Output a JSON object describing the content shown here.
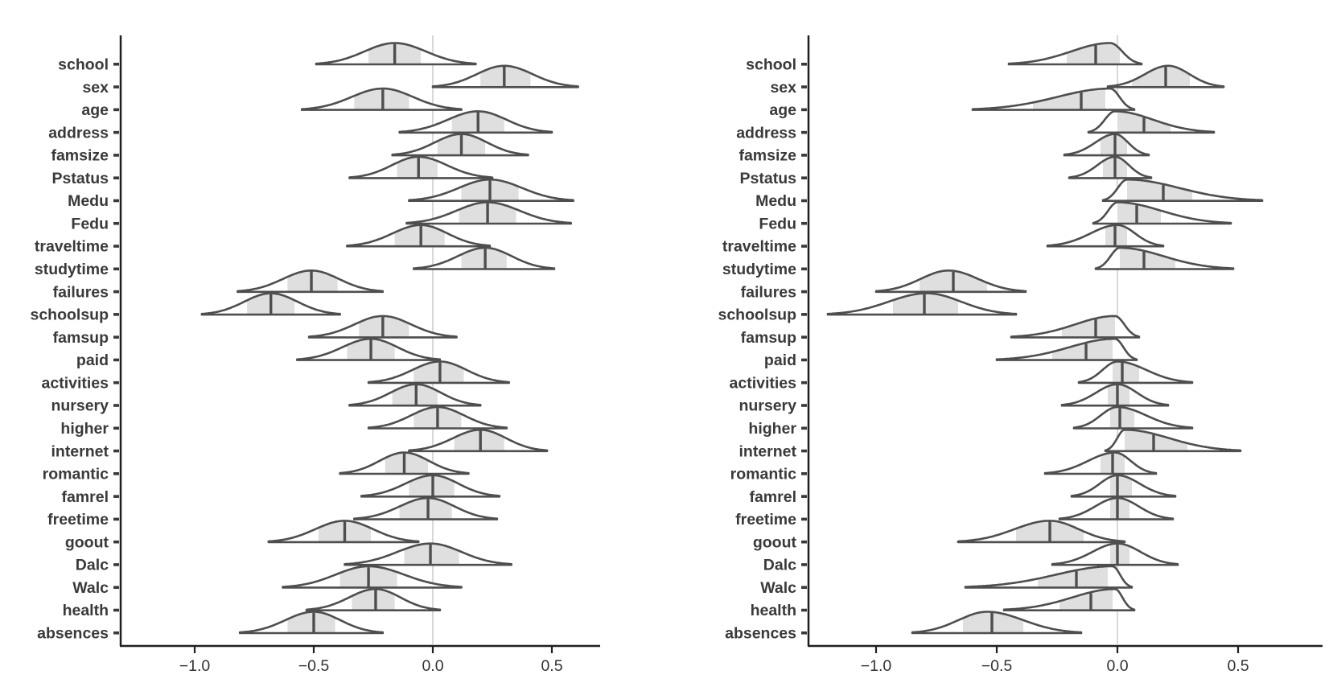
{
  "figure": {
    "background": "#ffffff",
    "curve_stroke": "#4e4e4e",
    "curve_fill": "#ffffff",
    "quartile_fill": "#dcdcdc",
    "median_color": "#4e4e4e",
    "zero_line_color": "#d8d8d8",
    "axis_color": "#1f1f1f",
    "y_label_color": "#3a3a3a",
    "x_label_color": "#333333"
  },
  "chart_data": [
    {
      "type": "ridgeline-density",
      "panel": "left",
      "title": "",
      "xlabel": "",
      "ylabel": "",
      "x_axis": {
        "tick_values": [
          -1.0,
          -0.5,
          0.0,
          0.5
        ],
        "tick_labels": [
          "−1.0",
          "−0.5",
          "0.0",
          "0.5"
        ],
        "reference_line": 0.0,
        "xlim": [
          -1.31,
          0.7
        ]
      },
      "rows": [
        {
          "label": "school",
          "median": -0.16,
          "q1": -0.27,
          "q3": -0.05,
          "min": -0.49,
          "max": 0.18,
          "mode": -0.16
        },
        {
          "label": "sex",
          "median": 0.3,
          "q1": 0.2,
          "q3": 0.41,
          "min": 0.0,
          "max": 0.61,
          "mode": 0.3
        },
        {
          "label": "age",
          "median": -0.21,
          "q1": -0.33,
          "q3": -0.1,
          "min": -0.55,
          "max": 0.12,
          "mode": -0.21
        },
        {
          "label": "address",
          "median": 0.19,
          "q1": 0.08,
          "q3": 0.3,
          "min": -0.14,
          "max": 0.5,
          "mode": 0.19
        },
        {
          "label": "famsize",
          "median": 0.12,
          "q1": 0.02,
          "q3": 0.22,
          "min": -0.17,
          "max": 0.4,
          "mode": 0.12
        },
        {
          "label": "Pstatus",
          "median": -0.06,
          "q1": -0.15,
          "q3": 0.02,
          "min": -0.35,
          "max": 0.25,
          "mode": -0.06
        },
        {
          "label": "Medu",
          "median": 0.24,
          "q1": 0.12,
          "q3": 0.36,
          "min": -0.1,
          "max": 0.59,
          "mode": 0.24
        },
        {
          "label": "Fedu",
          "median": 0.23,
          "q1": 0.11,
          "q3": 0.35,
          "min": -0.11,
          "max": 0.58,
          "mode": 0.23
        },
        {
          "label": "traveltime",
          "median": -0.05,
          "q1": -0.16,
          "q3": 0.05,
          "min": -0.36,
          "max": 0.24,
          "mode": -0.05
        },
        {
          "label": "studytime",
          "median": 0.22,
          "q1": 0.12,
          "q3": 0.31,
          "min": -0.08,
          "max": 0.51,
          "mode": 0.22
        },
        {
          "label": "failures",
          "median": -0.51,
          "q1": -0.61,
          "q3": -0.4,
          "min": -0.82,
          "max": -0.21,
          "mode": -0.51
        },
        {
          "label": "schoolsup",
          "median": -0.68,
          "q1": -0.78,
          "q3": -0.58,
          "min": -0.97,
          "max": -0.39,
          "mode": -0.68
        },
        {
          "label": "famsup",
          "median": -0.21,
          "q1": -0.31,
          "q3": -0.1,
          "min": -0.52,
          "max": 0.1,
          "mode": -0.21
        },
        {
          "label": "paid",
          "median": -0.26,
          "q1": -0.36,
          "q3": -0.16,
          "min": -0.57,
          "max": 0.03,
          "mode": -0.26
        },
        {
          "label": "activities",
          "median": 0.03,
          "q1": -0.08,
          "q3": 0.13,
          "min": -0.27,
          "max": 0.32,
          "mode": 0.03
        },
        {
          "label": "nursery",
          "median": -0.07,
          "q1": -0.17,
          "q3": 0.02,
          "min": -0.35,
          "max": 0.2,
          "mode": -0.07
        },
        {
          "label": "higher",
          "median": 0.02,
          "q1": -0.08,
          "q3": 0.12,
          "min": -0.27,
          "max": 0.31,
          "mode": 0.02
        },
        {
          "label": "internet",
          "median": 0.2,
          "q1": 0.09,
          "q3": 0.3,
          "min": -0.1,
          "max": 0.48,
          "mode": 0.2
        },
        {
          "label": "romantic",
          "median": -0.12,
          "q1": -0.2,
          "q3": -0.02,
          "min": -0.39,
          "max": 0.15,
          "mode": -0.12
        },
        {
          "label": "famrel",
          "median": 0.0,
          "q1": -0.1,
          "q3": 0.09,
          "min": -0.3,
          "max": 0.28,
          "mode": 0.0
        },
        {
          "label": "freetime",
          "median": -0.02,
          "q1": -0.14,
          "q3": 0.08,
          "min": -0.33,
          "max": 0.27,
          "mode": -0.02
        },
        {
          "label": "goout",
          "median": -0.37,
          "q1": -0.48,
          "q3": -0.26,
          "min": -0.69,
          "max": -0.06,
          "mode": -0.37
        },
        {
          "label": "Dalc",
          "median": -0.01,
          "q1": -0.12,
          "q3": 0.11,
          "min": -0.37,
          "max": 0.33,
          "mode": -0.01
        },
        {
          "label": "Walc",
          "median": -0.27,
          "q1": -0.39,
          "q3": -0.15,
          "min": -0.63,
          "max": 0.12,
          "mode": -0.27
        },
        {
          "label": "health",
          "median": -0.24,
          "q1": -0.34,
          "q3": -0.16,
          "min": -0.53,
          "max": 0.03,
          "mode": -0.24
        },
        {
          "label": "absences",
          "median": -0.5,
          "q1": -0.61,
          "q3": -0.41,
          "min": -0.81,
          "max": -0.21,
          "mode": -0.5
        }
      ]
    },
    {
      "type": "ridgeline-density",
      "panel": "right",
      "title": "",
      "xlabel": "",
      "ylabel": "",
      "x_axis": {
        "tick_values": [
          -1.0,
          -0.5,
          0.0,
          0.5
        ],
        "tick_labels": [
          "−1.0",
          "−0.5",
          "0.0",
          "0.5"
        ],
        "reference_line": 0.0,
        "xlim": [
          -1.28,
          0.85
        ]
      },
      "rows": [
        {
          "label": "school",
          "median": -0.09,
          "q1": -0.21,
          "q3": 0.01,
          "min": -0.45,
          "max": 0.1,
          "mode": -0.03
        },
        {
          "label": "sex",
          "median": 0.2,
          "q1": 0.06,
          "q3": 0.3,
          "min": -0.04,
          "max": 0.44,
          "mode": 0.21
        },
        {
          "label": "age",
          "median": -0.15,
          "q1": -0.35,
          "q3": -0.05,
          "min": -0.6,
          "max": 0.07,
          "mode": -0.03
        },
        {
          "label": "address",
          "median": 0.11,
          "q1": 0.0,
          "q3": 0.22,
          "min": -0.12,
          "max": 0.4,
          "mode": -0.01
        },
        {
          "label": "famsize",
          "median": -0.01,
          "q1": -0.07,
          "q3": 0.04,
          "min": -0.22,
          "max": 0.13,
          "mode": -0.01
        },
        {
          "label": "Pstatus",
          "median": -0.01,
          "q1": -0.06,
          "q3": 0.04,
          "min": -0.2,
          "max": 0.14,
          "mode": -0.01
        },
        {
          "label": "Medu",
          "median": 0.19,
          "q1": 0.04,
          "q3": 0.31,
          "min": -0.06,
          "max": 0.6,
          "mode": 0.04
        },
        {
          "label": "Fedu",
          "median": 0.08,
          "q1": 0.0,
          "q3": 0.18,
          "min": -0.1,
          "max": 0.47,
          "mode": 0.0
        },
        {
          "label": "traveltime",
          "median": -0.01,
          "q1": -0.05,
          "q3": 0.04,
          "min": -0.29,
          "max": 0.19,
          "mode": 0.0
        },
        {
          "label": "studytime",
          "median": 0.11,
          "q1": 0.01,
          "q3": 0.24,
          "min": -0.09,
          "max": 0.48,
          "mode": 0.01
        },
        {
          "label": "failures",
          "median": -0.68,
          "q1": -0.82,
          "q3": -0.54,
          "min": -1.0,
          "max": -0.38,
          "mode": -0.7
        },
        {
          "label": "schoolsup",
          "median": -0.8,
          "q1": -0.93,
          "q3": -0.66,
          "min": -1.2,
          "max": -0.42,
          "mode": -0.79
        },
        {
          "label": "famsup",
          "median": -0.09,
          "q1": -0.23,
          "q3": -0.01,
          "min": -0.44,
          "max": 0.09,
          "mode": -0.01
        },
        {
          "label": "paid",
          "median": -0.13,
          "q1": -0.27,
          "q3": -0.02,
          "min": -0.5,
          "max": 0.08,
          "mode": -0.01
        },
        {
          "label": "activities",
          "median": 0.02,
          "q1": -0.02,
          "q3": 0.09,
          "min": -0.16,
          "max": 0.31,
          "mode": 0.0
        },
        {
          "label": "nursery",
          "median": 0.0,
          "q1": -0.04,
          "q3": 0.05,
          "min": -0.23,
          "max": 0.21,
          "mode": 0.0
        },
        {
          "label": "higher",
          "median": 0.01,
          "q1": -0.03,
          "q3": 0.07,
          "min": -0.18,
          "max": 0.31,
          "mode": 0.0
        },
        {
          "label": "internet",
          "median": 0.15,
          "q1": 0.03,
          "q3": 0.29,
          "min": -0.05,
          "max": 0.51,
          "mode": 0.03
        },
        {
          "label": "romantic",
          "median": -0.02,
          "q1": -0.07,
          "q3": 0.03,
          "min": -0.3,
          "max": 0.16,
          "mode": -0.01
        },
        {
          "label": "famrel",
          "median": 0.0,
          "q1": -0.03,
          "q3": 0.06,
          "min": -0.19,
          "max": 0.24,
          "mode": 0.0
        },
        {
          "label": "freetime",
          "median": 0.0,
          "q1": -0.03,
          "q3": 0.05,
          "min": -0.24,
          "max": 0.23,
          "mode": 0.0
        },
        {
          "label": "goout",
          "median": -0.28,
          "q1": -0.42,
          "q3": -0.14,
          "min": -0.66,
          "max": 0.03,
          "mode": -0.28
        },
        {
          "label": "Dalc",
          "median": 0.0,
          "q1": -0.03,
          "q3": 0.05,
          "min": -0.27,
          "max": 0.25,
          "mode": 0.0
        },
        {
          "label": "Walc",
          "median": -0.17,
          "q1": -0.33,
          "q3": -0.04,
          "min": -0.63,
          "max": 0.06,
          "mode": -0.02
        },
        {
          "label": "health",
          "median": -0.11,
          "q1": -0.24,
          "q3": -0.02,
          "min": -0.47,
          "max": 0.07,
          "mode": -0.01
        },
        {
          "label": "absences",
          "median": -0.52,
          "q1": -0.64,
          "q3": -0.39,
          "min": -0.85,
          "max": -0.15,
          "mode": -0.54
        }
      ]
    }
  ]
}
